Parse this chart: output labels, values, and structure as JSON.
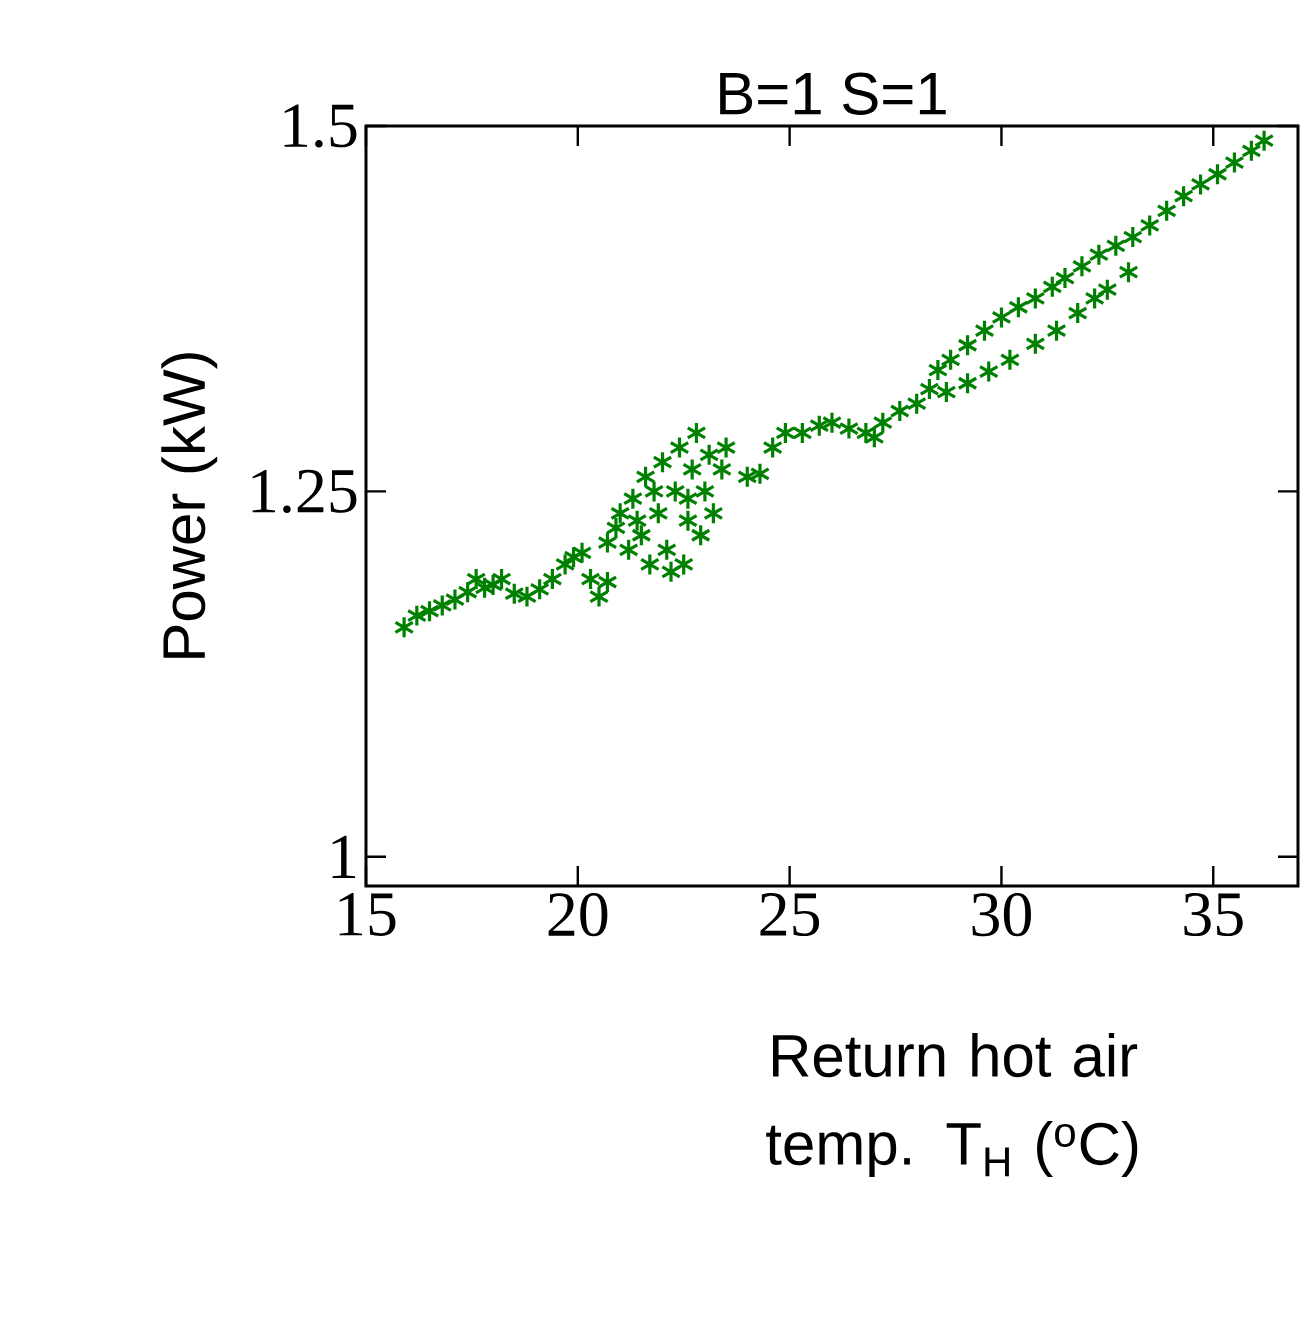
{
  "chart_data": {
    "type": "scatter",
    "title": "B=1   S=1",
    "xlabel": "Return hot air temp. T$_{H}$ ($^{o}$C)",
    "ylabel": "Power (kW)",
    "xlim": [
      15,
      37
    ],
    "ylim": [
      0.98,
      1.5
    ],
    "xticks": [
      15,
      20,
      25,
      30,
      35
    ],
    "yticks": [
      1,
      1.25,
      1.5
    ],
    "marker": "cross",
    "series": [
      {
        "color": "#008000",
        "x": [
          15.9,
          16.2,
          16.5,
          16.8,
          17.1,
          17.4,
          17.6,
          17.8,
          18.0,
          18.2,
          18.5,
          18.8,
          19.1,
          19.4,
          19.7,
          19.9,
          20.1,
          20.3,
          20.5,
          20.7,
          20.7,
          20.9,
          21.0,
          21.2,
          21.3,
          21.5,
          21.6,
          21.7,
          21.9,
          22.0,
          22.1,
          22.3,
          22.4,
          22.5,
          22.6,
          22.7,
          22.8,
          22.9,
          23.0,
          23.1,
          22.2,
          21.4,
          21.8,
          22.6,
          23.2,
          23.4,
          23.5,
          24.0,
          24.3,
          24.6,
          24.9,
          25.3,
          25.7,
          26.0,
          26.4,
          26.8,
          27.0,
          27.2,
          27.6,
          28.0,
          28.3,
          28.5,
          28.8,
          29.2,
          29.6,
          30.0,
          30.4,
          30.8,
          31.2,
          31.5,
          31.9,
          32.3,
          32.7,
          33.1,
          33.5,
          33.9,
          34.3,
          34.7,
          35.1,
          35.5,
          35.9,
          36.2,
          28.7,
          29.2,
          29.7,
          30.2,
          30.8,
          31.3,
          31.8,
          32.2,
          32.5,
          33.0
        ],
        "values": [
          1.157,
          1.165,
          1.168,
          1.172,
          1.176,
          1.181,
          1.19,
          1.184,
          1.186,
          1.19,
          1.18,
          1.178,
          1.183,
          1.19,
          1.2,
          1.205,
          1.208,
          1.19,
          1.178,
          1.188,
          1.215,
          1.225,
          1.235,
          1.21,
          1.245,
          1.22,
          1.26,
          1.2,
          1.235,
          1.27,
          1.21,
          1.25,
          1.28,
          1.2,
          1.23,
          1.265,
          1.29,
          1.22,
          1.25,
          1.275,
          1.195,
          1.23,
          1.25,
          1.245,
          1.235,
          1.265,
          1.28,
          1.26,
          1.262,
          1.28,
          1.29,
          1.29,
          1.295,
          1.297,
          1.293,
          1.29,
          1.287,
          1.297,
          1.305,
          1.31,
          1.32,
          1.333,
          1.34,
          1.35,
          1.36,
          1.369,
          1.376,
          1.382,
          1.39,
          1.396,
          1.404,
          1.412,
          1.418,
          1.424,
          1.432,
          1.442,
          1.452,
          1.46,
          1.467,
          1.475,
          1.483,
          1.49,
          1.318,
          1.324,
          1.332,
          1.34,
          1.351,
          1.36,
          1.372,
          1.382,
          1.388,
          1.4
        ]
      }
    ]
  }
}
